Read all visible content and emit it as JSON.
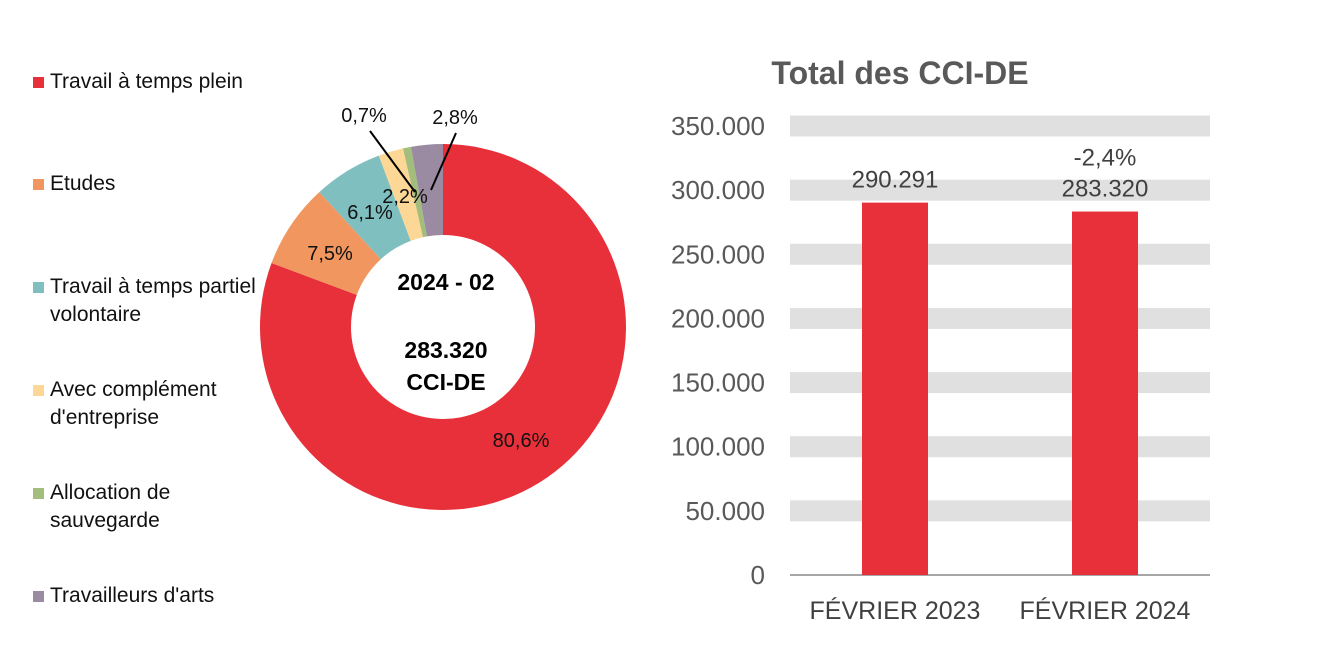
{
  "chart_data": [
    {
      "type": "pie",
      "variant": "donut",
      "center_label": {
        "period": "2024 - 02",
        "value": "283.320",
        "unit": "CCI-DE"
      },
      "legend_position": "left",
      "slices": [
        {
          "name": "Travail à temps plein",
          "value": 80.6,
          "label": "80,6%",
          "color": "#E8303A"
        },
        {
          "name": "Etudes",
          "value": 7.5,
          "label": "7,5%",
          "color": "#F0965E"
        },
        {
          "name": "Travail à temps partiel volontaire",
          "value": 6.1,
          "label": "6,1%",
          "color": "#80BFC0"
        },
        {
          "name": "Avec complément d'entreprise",
          "value": 2.2,
          "label": "2,2%",
          "color": "#FCD796"
        },
        {
          "name": "Allocation de sauvegarde",
          "value": 0.7,
          "label": "0,7%",
          "color": "#A3BD7C"
        },
        {
          "name": "Travailleurs d'arts",
          "value": 2.8,
          "label": "2,8%",
          "color": "#9A8BA2"
        }
      ]
    },
    {
      "type": "bar",
      "title": "Total des CCI-DE",
      "categories": [
        "FÉVRIER 2023",
        "FÉVRIER 2024"
      ],
      "values": [
        290291,
        283320
      ],
      "data_labels": [
        "290.291",
        "283.320"
      ],
      "change_label": "-2,4%",
      "ylim": [
        0,
        350000
      ],
      "yticks": [
        0,
        50000,
        100000,
        150000,
        200000,
        250000,
        300000,
        350000
      ],
      "ytick_labels": [
        "0",
        "50.000",
        "100.000",
        "150.000",
        "200.000",
        "250.000",
        "300.000",
        "350.000"
      ],
      "grid": true,
      "bar_color": "#E8303A",
      "grid_color": "#E0E0E0"
    }
  ]
}
